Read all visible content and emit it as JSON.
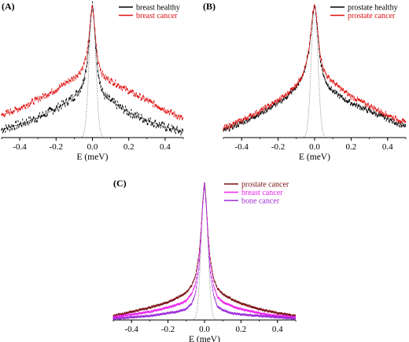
{
  "chart_data": [
    {
      "type": "scatter",
      "panel_label": "(A)",
      "xlabel": "E (meV)",
      "ylabel": "",
      "xlim": [
        -0.5,
        0.5
      ],
      "x_ticks": [
        -0.4,
        -0.2,
        0.0,
        0.2,
        0.4
      ],
      "x_tick_labels": [
        "-0.4",
        "-0.2",
        "0.0",
        "0.2",
        "0.4"
      ],
      "y_axis_shown": false,
      "legend_position": "top-right",
      "resolution_line": true,
      "series": [
        {
          "name": "breast healthy",
          "color": "#000000",
          "x": [
            -0.5,
            -0.4,
            -0.3,
            -0.2,
            -0.15,
            -0.1,
            -0.07,
            -0.05,
            -0.03,
            -0.02,
            -0.01,
            0.0,
            0.01,
            0.02,
            0.03,
            0.05,
            0.07,
            0.1,
            0.15,
            0.2,
            0.3,
            0.4,
            0.5
          ],
          "y": [
            0.06,
            0.1,
            0.15,
            0.22,
            0.26,
            0.31,
            0.36,
            0.42,
            0.55,
            0.7,
            0.88,
            1.0,
            0.86,
            0.66,
            0.5,
            0.36,
            0.31,
            0.28,
            0.23,
            0.19,
            0.13,
            0.08,
            0.04
          ],
          "noise": 0.018
        },
        {
          "name": "breast cancer",
          "color": "#e01010",
          "x": [
            -0.5,
            -0.4,
            -0.3,
            -0.2,
            -0.15,
            -0.1,
            -0.07,
            -0.05,
            -0.03,
            -0.02,
            -0.01,
            0.0,
            0.01,
            0.02,
            0.03,
            0.05,
            0.07,
            0.1,
            0.15,
            0.2,
            0.3,
            0.4,
            0.5
          ],
          "y": [
            0.17,
            0.22,
            0.29,
            0.36,
            0.41,
            0.45,
            0.49,
            0.54,
            0.63,
            0.75,
            0.9,
            1.0,
            0.87,
            0.71,
            0.59,
            0.49,
            0.45,
            0.43,
            0.39,
            0.35,
            0.28,
            0.21,
            0.14
          ],
          "noise": 0.013
        }
      ]
    },
    {
      "type": "scatter",
      "panel_label": "(B)",
      "xlabel": "E (meV)",
      "ylabel": "",
      "xlim": [
        -0.5,
        0.5
      ],
      "x_ticks": [
        -0.4,
        -0.2,
        0.0,
        0.2,
        0.4
      ],
      "x_tick_labels": [
        "-0.4",
        "-0.2",
        "0.0",
        "0.2",
        "0.4"
      ],
      "y_axis_shown": false,
      "legend_position": "top-right",
      "resolution_line": true,
      "series": [
        {
          "name": "prostate healthy",
          "color": "#000000",
          "x": [
            -0.5,
            -0.4,
            -0.3,
            -0.2,
            -0.15,
            -0.1,
            -0.07,
            -0.05,
            -0.03,
            -0.02,
            -0.01,
            0.0,
            0.01,
            0.02,
            0.03,
            0.05,
            0.07,
            0.1,
            0.15,
            0.2,
            0.3,
            0.4,
            0.5
          ],
          "y": [
            0.05,
            0.11,
            0.18,
            0.26,
            0.31,
            0.38,
            0.45,
            0.53,
            0.66,
            0.79,
            0.93,
            1.0,
            0.9,
            0.74,
            0.59,
            0.46,
            0.4,
            0.35,
            0.3,
            0.26,
            0.2,
            0.14,
            0.08
          ],
          "noise": 0.01
        },
        {
          "name": "prostate cancer",
          "color": "#e01010",
          "x": [
            -0.5,
            -0.4,
            -0.3,
            -0.2,
            -0.15,
            -0.1,
            -0.07,
            -0.05,
            -0.03,
            -0.02,
            -0.01,
            0.0,
            0.01,
            0.02,
            0.03,
            0.05,
            0.07,
            0.1,
            0.15,
            0.2,
            0.3,
            0.4,
            0.5
          ],
          "y": [
            0.07,
            0.13,
            0.2,
            0.28,
            0.33,
            0.4,
            0.46,
            0.54,
            0.67,
            0.8,
            0.93,
            1.0,
            0.91,
            0.77,
            0.63,
            0.51,
            0.46,
            0.42,
            0.36,
            0.31,
            0.24,
            0.17,
            0.11
          ],
          "noise": 0.01
        }
      ]
    },
    {
      "type": "scatter",
      "panel_label": "(C)",
      "xlabel": "E (meV)",
      "ylabel": "",
      "xlim": [
        -0.5,
        0.5
      ],
      "x_ticks": [
        -0.4,
        -0.2,
        0.0,
        0.2,
        0.4
      ],
      "x_tick_labels": [
        "-0.4",
        "-0.2",
        "0.0",
        "0.2",
        "0.4"
      ],
      "y_axis_shown": false,
      "legend_position": "top-right",
      "resolution_line": true,
      "series": [
        {
          "name": "prostate cancer",
          "color": "#7a0f14",
          "x": [
            -0.5,
            -0.4,
            -0.3,
            -0.2,
            -0.15,
            -0.1,
            -0.07,
            -0.05,
            -0.03,
            -0.02,
            -0.01,
            0.0,
            0.01,
            0.02,
            0.03,
            0.05,
            0.07,
            0.1,
            0.15,
            0.2,
            0.3,
            0.4,
            0.5
          ],
          "y": [
            0.03,
            0.06,
            0.09,
            0.13,
            0.16,
            0.2,
            0.25,
            0.32,
            0.48,
            0.64,
            0.85,
            1.0,
            0.84,
            0.62,
            0.46,
            0.3,
            0.23,
            0.19,
            0.15,
            0.12,
            0.08,
            0.05,
            0.03
          ],
          "noise": 0.004
        },
        {
          "name": "breast cancer",
          "color": "#ee22ee",
          "x": [
            -0.5,
            -0.4,
            -0.3,
            -0.2,
            -0.15,
            -0.1,
            -0.07,
            -0.05,
            -0.03,
            -0.02,
            -0.01,
            0.0,
            0.01,
            0.02,
            0.03,
            0.05,
            0.07,
            0.1,
            0.15,
            0.2,
            0.3,
            0.4,
            0.5
          ],
          "y": [
            0.02,
            0.04,
            0.06,
            0.09,
            0.11,
            0.14,
            0.19,
            0.26,
            0.44,
            0.62,
            0.84,
            1.0,
            0.83,
            0.6,
            0.42,
            0.25,
            0.17,
            0.13,
            0.1,
            0.08,
            0.05,
            0.03,
            0.02
          ],
          "noise": 0.004
        },
        {
          "name": "bone cancer",
          "color": "#9a2bd6",
          "x": [
            -0.5,
            -0.4,
            -0.3,
            -0.2,
            -0.15,
            -0.1,
            -0.07,
            -0.05,
            -0.03,
            -0.02,
            -0.01,
            0.0,
            0.01,
            0.02,
            0.03,
            0.05,
            0.07,
            0.1,
            0.15,
            0.2,
            0.3,
            0.4,
            0.5
          ],
          "y": [
            0.01,
            0.02,
            0.03,
            0.05,
            0.06,
            0.08,
            0.12,
            0.19,
            0.38,
            0.58,
            0.82,
            1.0,
            0.81,
            0.56,
            0.36,
            0.18,
            0.1,
            0.07,
            0.05,
            0.04,
            0.03,
            0.02,
            0.01
          ],
          "noise": 0.003
        }
      ]
    }
  ]
}
